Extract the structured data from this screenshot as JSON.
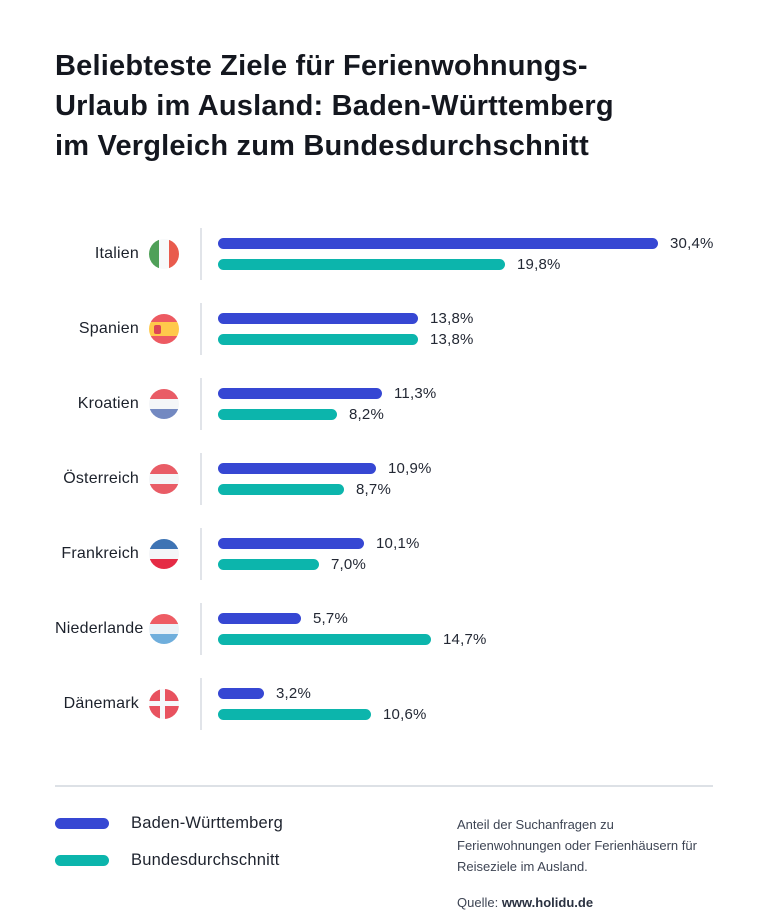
{
  "title_lines": [
    "Beliebteste Ziele für Ferienwohnungs-",
    "Urlaub im Ausland: Baden-Württemberg",
    "im Vergleich zum Bundesdurchschnitt"
  ],
  "colors": {
    "baden_wuerttemberg_blue": "#3647D3",
    "bundesdurchschnitt_teal": "#0CB5AC"
  },
  "chart_data": {
    "type": "bar",
    "orientation": "horizontal",
    "unit": "%",
    "xmax": 30.4,
    "categories": [
      "Italien",
      "Spanien",
      "Kroatien",
      "Österreich",
      "Frankreich",
      "Niederlande",
      "Dänemark"
    ],
    "flags": [
      "italy",
      "spain",
      "croatia",
      "austria",
      "france",
      "netherlands",
      "denmark"
    ],
    "series": [
      {
        "name": "Baden-Württemberg",
        "color": "#3647D3",
        "values": [
          30.4,
          13.8,
          11.3,
          10.9,
          10.1,
          5.7,
          3.2
        ],
        "labels": [
          "30,4%",
          "13,8%",
          "11,3%",
          "10,9%",
          "10,1%",
          "5,7%",
          "3,2%"
        ]
      },
      {
        "name": "Bundesdurchschnitt",
        "color": "#0CB5AC",
        "values": [
          19.8,
          13.8,
          8.2,
          8.7,
          7.0,
          14.7,
          10.6
        ],
        "labels": [
          "19,8%",
          "13,8%",
          "8,2%",
          "8,7%",
          "7,0%",
          "14,7%",
          "10,6%"
        ]
      }
    ]
  },
  "legend": {
    "items": [
      {
        "label": "Baden-Württemberg",
        "color": "#3647D3"
      },
      {
        "label": "Bundesdurchschnitt",
        "color": "#0CB5AC"
      }
    ]
  },
  "footer": {
    "note": "Anteil der Suchanfragen zu Ferienwohnungen oder Ferienhäusern für Reiseziele im Ausland.",
    "source_prefix": "Quelle: ",
    "source": "www.holidu.de"
  }
}
